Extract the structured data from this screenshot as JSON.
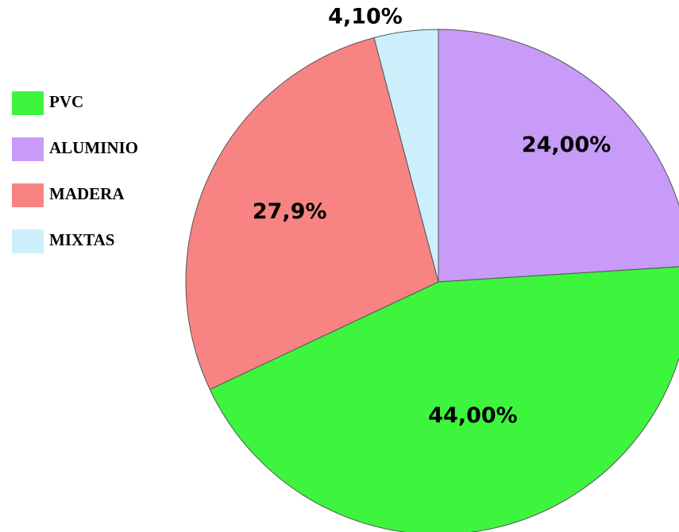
{
  "chart_data": {
    "type": "pie",
    "categories": [
      "PVC",
      "ALUMINIO",
      "MADERA",
      "MIXTAS"
    ],
    "values": [
      44,
      24,
      27.9,
      4.1
    ],
    "value_labels": [
      "44,00%",
      "24,00%",
      "27,9%",
      "4,10%"
    ],
    "colors": [
      "#3df53d",
      "#c79bf7",
      "#f88383",
      "#cdeefb"
    ],
    "legend": "left"
  }
}
